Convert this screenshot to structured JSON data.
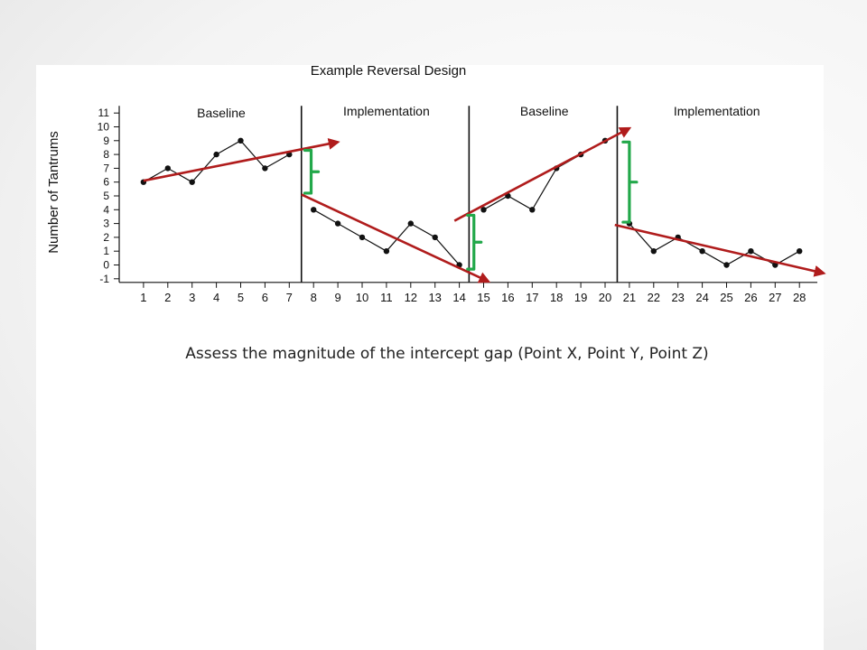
{
  "chart_data": {
    "type": "line",
    "title": "Example Reversal Design",
    "ylabel": "Number of Tantrums",
    "xlabel": "",
    "xlim": [
      0,
      28.5
    ],
    "ylim": [
      -1,
      11
    ],
    "x_ticks": [
      1,
      2,
      3,
      4,
      5,
      6,
      7,
      8,
      9,
      10,
      11,
      12,
      13,
      14,
      15,
      16,
      17,
      18,
      19,
      20,
      21,
      22,
      23,
      24,
      25,
      26,
      27,
      28
    ],
    "y_ticks": [
      -1,
      0,
      1,
      2,
      3,
      4,
      5,
      6,
      7,
      8,
      9,
      10,
      11
    ],
    "phase_lines": [
      7.5,
      14.4,
      20.5
    ],
    "phases": [
      {
        "label": "Baseline",
        "sessions": [
          1,
          2,
          3,
          4,
          5,
          6,
          7
        ],
        "values": [
          6,
          7,
          6,
          8,
          9,
          7,
          8
        ]
      },
      {
        "label": "Implementation",
        "sessions": [
          8,
          9,
          10,
          11,
          12,
          13,
          14
        ],
        "values": [
          4,
          3,
          2,
          1,
          3,
          2,
          0
        ]
      },
      {
        "label": "Baseline",
        "sessions": [
          15,
          16,
          17,
          18,
          19,
          20
        ],
        "values": [
          4,
          5,
          4,
          7,
          8,
          9
        ]
      },
      {
        "label": "Implementation",
        "sessions": [
          21,
          22,
          23,
          24,
          25,
          26,
          27,
          28
        ],
        "values": [
          3,
          1,
          2,
          1,
          0,
          1,
          0,
          1
        ]
      }
    ],
    "trend_lines": [
      {
        "from": [
          1,
          6.1
        ],
        "to": [
          9,
          8.9
        ],
        "color": "#b01c1c"
      },
      {
        "from": [
          7.5,
          5.1
        ],
        "to": [
          15.2,
          -1.2
        ],
        "color": "#b01c1c"
      },
      {
        "from": [
          13.8,
          3.2
        ],
        "to": [
          21,
          9.9
        ],
        "color": "#b01c1c"
      },
      {
        "from": [
          20.4,
          2.9
        ],
        "to": [
          29,
          -0.6
        ],
        "color": "#b01c1c"
      }
    ],
    "intercept_gaps": [
      {
        "x": 7.9,
        "y_top": 8.3,
        "y_bottom": 5.2,
        "color": "#22a84a"
      },
      {
        "x": 14.6,
        "y_top": 3.6,
        "y_bottom": -0.3,
        "color": "#22a84a"
      },
      {
        "x": 21.0,
        "y_top": 8.9,
        "y_bottom": 3.1,
        "color": "#22a84a"
      }
    ]
  },
  "caption": {
    "part1": "Assess the magnitude of the intercept gap",
    "part2": "(Point X,",
    "part3": "Point Y,",
    "part4": "Point Z)"
  }
}
